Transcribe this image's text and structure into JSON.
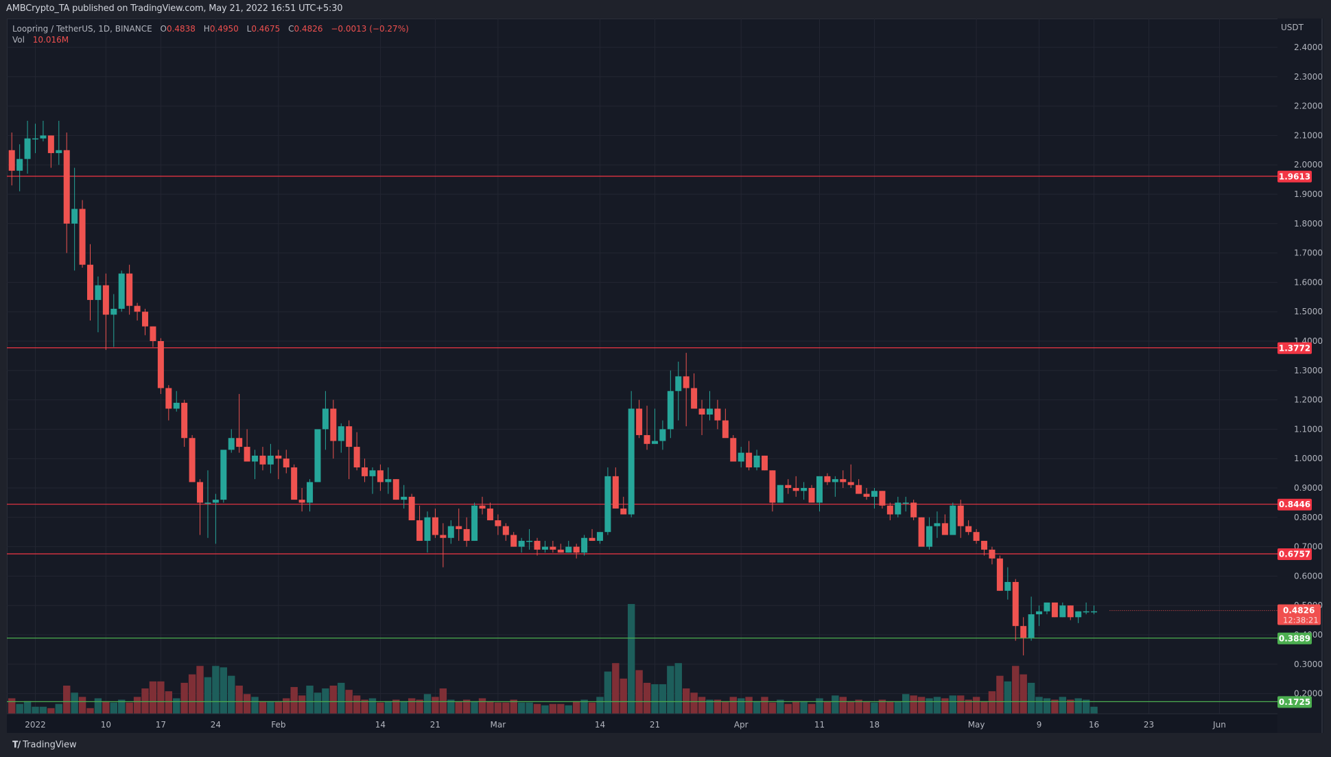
{
  "publish_line": "AMBCrypto_TA published on TradingView.com, May 21, 2022 16:51 UTC+5:30",
  "legend": {
    "symbol": "Loopring / TetherUS, 1D, BINANCE",
    "open_label": "O",
    "open": "0.4838",
    "high_label": "H",
    "high": "0.4950",
    "low_label": "L",
    "low": "0.4675",
    "close_label": "C",
    "close": "0.4826",
    "change": "−0.0013 (−0.27%)",
    "vol_label": "Vol",
    "vol_value": "10.016M"
  },
  "axis": {
    "unit": "USDT",
    "price_ticks": [
      "2.4000",
      "2.3000",
      "2.2000",
      "2.1000",
      "2.0000",
      "1.9000",
      "1.8000",
      "1.7000",
      "1.6000",
      "1.5000",
      "1.4000",
      "1.3000",
      "1.2000",
      "1.1000",
      "1.0000",
      "0.9000",
      "0.8000",
      "0.7000",
      "0.6000",
      "0.5000",
      "0.4000",
      "0.3000",
      "0.2000"
    ],
    "time_ticks": [
      {
        "label": "2022",
        "day": 0
      },
      {
        "label": "10",
        "day": 9
      },
      {
        "label": "17",
        "day": 16
      },
      {
        "label": "24",
        "day": 23
      },
      {
        "label": "Feb",
        "day": 31
      },
      {
        "label": "14",
        "day": 44
      },
      {
        "label": "21",
        "day": 51
      },
      {
        "label": "Mar",
        "day": 59
      },
      {
        "label": "14",
        "day": 72
      },
      {
        "label": "21",
        "day": 79
      },
      {
        "label": "Apr",
        "day": 90
      },
      {
        "label": "11",
        "day": 100
      },
      {
        "label": "18",
        "day": 107
      },
      {
        "label": "May",
        "day": 120
      },
      {
        "label": "9",
        "day": 128
      },
      {
        "label": "16",
        "day": 135
      },
      {
        "label": "23",
        "day": 142
      },
      {
        "label": "Jun",
        "day": 151
      }
    ]
  },
  "footer": {
    "brand": "TradingView"
  },
  "colors": {
    "up": "#26a69a",
    "down": "#ef5350",
    "vol_up": "#1d5e5b",
    "vol_down": "#7f2f36",
    "resistance": "#f23645",
    "support": "#4caf50",
    "last_price_bg": "#f0504f",
    "grid": "#232632",
    "bg": "#161a25"
  },
  "chart_data": {
    "type": "candlestick",
    "title": "Loopring / TetherUS, 1D, BINANCE",
    "xlabel": "",
    "ylabel": "USDT",
    "ylim": [
      0.15,
      2.45
    ],
    "grid": true,
    "start_date": "2021-12-29",
    "levels": [
      {
        "price": 1.9613,
        "label": "1.9613",
        "kind": "resistance"
      },
      {
        "price": 1.3772,
        "label": "1.3772",
        "kind": "resistance"
      },
      {
        "price": 0.8446,
        "label": "0.8446",
        "kind": "resistance"
      },
      {
        "price": 0.6757,
        "label": "0.6757",
        "kind": "resistance"
      },
      {
        "price": 0.3889,
        "label": "0.3889",
        "kind": "support"
      },
      {
        "price": 0.1725,
        "label": "0.1725",
        "kind": "support"
      }
    ],
    "last_price": {
      "price": 0.4826,
      "label": "0.4826",
      "countdown": "12:38:21"
    },
    "candles": [
      [
        2.05,
        2.11,
        1.93,
        1.98,
        11
      ],
      [
        1.98,
        2.07,
        1.91,
        2.02,
        7
      ],
      [
        2.02,
        2.15,
        1.97,
        2.09,
        9
      ],
      [
        2.09,
        2.14,
        2.04,
        2.09,
        5
      ],
      [
        2.09,
        2.15,
        2.08,
        2.1,
        5
      ],
      [
        2.1,
        2.1,
        1.99,
        2.04,
        4
      ],
      [
        2.04,
        2.15,
        2.0,
        2.05,
        7
      ],
      [
        2.05,
        2.11,
        1.7,
        1.8,
        20
      ],
      [
        1.8,
        1.99,
        1.64,
        1.85,
        15
      ],
      [
        1.85,
        1.88,
        1.65,
        1.66,
        12
      ],
      [
        1.66,
        1.73,
        1.47,
        1.54,
        4
      ],
      [
        1.54,
        1.62,
        1.43,
        1.59,
        11
      ],
      [
        1.59,
        1.63,
        1.37,
        1.49,
        9
      ],
      [
        1.49,
        1.56,
        1.38,
        1.51,
        8
      ],
      [
        1.51,
        1.64,
        1.5,
        1.63,
        10
      ],
      [
        1.63,
        1.66,
        1.49,
        1.52,
        8
      ],
      [
        1.52,
        1.53,
        1.47,
        1.5,
        12
      ],
      [
        1.5,
        1.51,
        1.42,
        1.45,
        18
      ],
      [
        1.45,
        1.45,
        1.38,
        1.4,
        23
      ],
      [
        1.4,
        1.41,
        1.22,
        1.24,
        23
      ],
      [
        1.24,
        1.25,
        1.13,
        1.17,
        16
      ],
      [
        1.17,
        1.23,
        1.16,
        1.19,
        11
      ],
      [
        1.19,
        1.2,
        1.04,
        1.07,
        22
      ],
      [
        1.07,
        1.08,
        0.95,
        0.92,
        28
      ],
      [
        0.92,
        0.93,
        0.74,
        0.85,
        34
      ],
      [
        0.85,
        0.96,
        0.73,
        0.85,
        26
      ],
      [
        0.85,
        0.88,
        0.71,
        0.86,
        34
      ],
      [
        0.86,
        1.02,
        0.85,
        1.03,
        33
      ],
      [
        1.03,
        1.1,
        1.02,
        1.07,
        27
      ],
      [
        1.07,
        1.22,
        1.02,
        1.04,
        20
      ],
      [
        1.04,
        1.1,
        1.0,
        0.99,
        14
      ],
      [
        0.99,
        1.03,
        0.93,
        1.01,
        12
      ],
      [
        1.01,
        1.04,
        0.96,
        0.98,
        9
      ],
      [
        0.98,
        1.05,
        0.95,
        1.01,
        9
      ],
      [
        1.01,
        1.03,
        0.93,
        1.0,
        9
      ],
      [
        1.0,
        1.03,
        0.95,
        0.97,
        11
      ],
      [
        0.97,
        0.98,
        0.87,
        0.86,
        19
      ],
      [
        0.86,
        0.9,
        0.82,
        0.85,
        13
      ],
      [
        0.85,
        0.93,
        0.82,
        0.92,
        20
      ],
      [
        0.92,
        1.09,
        0.92,
        1.1,
        15
      ],
      [
        1.1,
        1.23,
        1.03,
        1.17,
        18
      ],
      [
        1.17,
        1.2,
        1.0,
        1.06,
        20
      ],
      [
        1.06,
        1.12,
        1.02,
        1.11,
        22
      ],
      [
        1.11,
        1.13,
        0.93,
        1.04,
        17
      ],
      [
        1.04,
        1.09,
        0.96,
        0.97,
        13
      ],
      [
        0.97,
        1.0,
        0.92,
        0.94,
        10
      ],
      [
        0.94,
        0.97,
        0.88,
        0.96,
        11
      ],
      [
        0.96,
        0.98,
        0.89,
        0.92,
        8
      ],
      [
        0.92,
        0.97,
        0.88,
        0.93,
        9
      ],
      [
        0.93,
        0.93,
        0.86,
        0.86,
        10
      ],
      [
        0.86,
        0.91,
        0.83,
        0.87,
        9
      ],
      [
        0.87,
        0.88,
        0.79,
        0.79,
        11
      ],
      [
        0.79,
        0.84,
        0.72,
        0.72,
        10
      ],
      [
        0.72,
        0.82,
        0.68,
        0.8,
        14
      ],
      [
        0.8,
        0.83,
        0.73,
        0.74,
        12
      ],
      [
        0.74,
        0.78,
        0.63,
        0.73,
        18
      ],
      [
        0.73,
        0.79,
        0.71,
        0.77,
        10
      ],
      [
        0.77,
        0.83,
        0.72,
        0.76,
        9
      ],
      [
        0.76,
        0.8,
        0.7,
        0.72,
        10
      ],
      [
        0.72,
        0.85,
        0.72,
        0.84,
        9
      ],
      [
        0.84,
        0.87,
        0.81,
        0.83,
        11
      ],
      [
        0.83,
        0.85,
        0.79,
        0.79,
        9
      ],
      [
        0.79,
        0.81,
        0.74,
        0.77,
        8
      ],
      [
        0.77,
        0.78,
        0.72,
        0.74,
        8
      ],
      [
        0.74,
        0.75,
        0.7,
        0.7,
        10
      ],
      [
        0.7,
        0.73,
        0.68,
        0.72,
        8
      ],
      [
        0.72,
        0.76,
        0.69,
        0.72,
        8
      ],
      [
        0.72,
        0.73,
        0.67,
        0.69,
        7
      ],
      [
        0.69,
        0.72,
        0.68,
        0.7,
        6
      ],
      [
        0.7,
        0.72,
        0.68,
        0.69,
        7
      ],
      [
        0.69,
        0.71,
        0.68,
        0.68,
        7
      ],
      [
        0.68,
        0.72,
        0.68,
        0.7,
        6
      ],
      [
        0.7,
        0.71,
        0.66,
        0.68,
        9
      ],
      [
        0.68,
        0.74,
        0.67,
        0.73,
        10
      ],
      [
        0.73,
        0.76,
        0.72,
        0.72,
        8
      ],
      [
        0.72,
        0.75,
        0.71,
        0.75,
        12
      ],
      [
        0.75,
        0.97,
        0.74,
        0.94,
        30
      ],
      [
        0.94,
        0.97,
        0.83,
        0.83,
        36
      ],
      [
        0.83,
        0.87,
        0.81,
        0.81,
        25
      ],
      [
        0.81,
        1.23,
        0.8,
        1.17,
        78
      ],
      [
        1.17,
        1.2,
        1.07,
        1.08,
        31
      ],
      [
        1.08,
        1.18,
        1.03,
        1.05,
        22
      ],
      [
        1.05,
        1.17,
        1.05,
        1.06,
        21
      ],
      [
        1.06,
        1.13,
        1.03,
        1.1,
        21
      ],
      [
        1.1,
        1.3,
        1.07,
        1.23,
        34
      ],
      [
        1.23,
        1.33,
        1.13,
        1.28,
        36
      ],
      [
        1.28,
        1.36,
        1.11,
        1.24,
        18
      ],
      [
        1.24,
        1.29,
        1.2,
        1.17,
        15
      ],
      [
        1.17,
        1.2,
        1.08,
        1.15,
        12
      ],
      [
        1.15,
        1.23,
        1.13,
        1.17,
        10
      ],
      [
        1.17,
        1.2,
        1.1,
        1.13,
        10
      ],
      [
        1.13,
        1.17,
        1.11,
        1.07,
        9
      ],
      [
        1.07,
        1.08,
        1.01,
        0.99,
        12
      ],
      [
        0.99,
        1.04,
        0.97,
        1.02,
        11
      ],
      [
        1.02,
        1.06,
        0.96,
        0.97,
        12
      ],
      [
        0.97,
        1.03,
        0.96,
        1.01,
        9
      ],
      [
        1.01,
        1.01,
        0.96,
        0.96,
        12
      ],
      [
        0.96,
        0.96,
        0.82,
        0.85,
        8
      ],
      [
        0.85,
        0.91,
        0.85,
        0.91,
        10
      ],
      [
        0.91,
        0.93,
        0.88,
        0.9,
        7
      ],
      [
        0.9,
        0.94,
        0.87,
        0.89,
        9
      ],
      [
        0.89,
        0.92,
        0.86,
        0.9,
        9
      ],
      [
        0.9,
        0.91,
        0.86,
        0.85,
        7
      ],
      [
        0.85,
        0.93,
        0.82,
        0.94,
        11
      ],
      [
        0.94,
        0.95,
        0.91,
        0.92,
        9
      ],
      [
        0.92,
        0.94,
        0.87,
        0.93,
        13
      ],
      [
        0.93,
        0.96,
        0.9,
        0.92,
        12
      ],
      [
        0.92,
        0.98,
        0.9,
        0.91,
        9
      ],
      [
        0.91,
        0.93,
        0.88,
        0.88,
        10
      ],
      [
        0.88,
        0.9,
        0.86,
        0.87,
        9
      ],
      [
        0.87,
        0.9,
        0.83,
        0.89,
        8
      ],
      [
        0.89,
        0.89,
        0.83,
        0.84,
        10
      ],
      [
        0.84,
        0.85,
        0.79,
        0.81,
        9
      ],
      [
        0.81,
        0.87,
        0.8,
        0.85,
        9
      ],
      [
        0.85,
        0.87,
        0.82,
        0.85,
        14
      ],
      [
        0.85,
        0.86,
        0.79,
        0.8,
        13
      ],
      [
        0.8,
        0.8,
        0.71,
        0.7,
        12
      ],
      [
        0.7,
        0.8,
        0.69,
        0.77,
        11
      ],
      [
        0.77,
        0.82,
        0.73,
        0.78,
        12
      ],
      [
        0.78,
        0.81,
        0.74,
        0.74,
        11
      ],
      [
        0.74,
        0.85,
        0.74,
        0.84,
        13
      ],
      [
        0.84,
        0.86,
        0.73,
        0.77,
        13
      ],
      [
        0.77,
        0.79,
        0.74,
        0.75,
        10
      ],
      [
        0.75,
        0.76,
        0.71,
        0.72,
        12
      ],
      [
        0.72,
        0.72,
        0.67,
        0.69,
        9
      ],
      [
        0.69,
        0.7,
        0.64,
        0.66,
        16
      ],
      [
        0.66,
        0.67,
        0.55,
        0.55,
        27
      ],
      [
        0.55,
        0.63,
        0.52,
        0.58,
        23
      ],
      [
        0.58,
        0.59,
        0.38,
        0.43,
        34
      ],
      [
        0.43,
        0.46,
        0.33,
        0.39,
        28
      ],
      [
        0.39,
        0.53,
        0.38,
        0.47,
        22
      ],
      [
        0.47,
        0.5,
        0.43,
        0.48,
        12
      ],
      [
        0.48,
        0.51,
        0.47,
        0.51,
        11
      ],
      [
        0.51,
        0.51,
        0.46,
        0.46,
        10
      ],
      [
        0.46,
        0.51,
        0.46,
        0.5,
        12
      ],
      [
        0.5,
        0.5,
        0.45,
        0.46,
        10
      ],
      [
        0.46,
        0.48,
        0.44,
        0.48,
        11
      ],
      [
        0.48,
        0.51,
        0.47,
        0.48,
        10
      ],
      [
        0.48,
        0.5,
        0.47,
        0.48,
        5
      ]
    ]
  }
}
